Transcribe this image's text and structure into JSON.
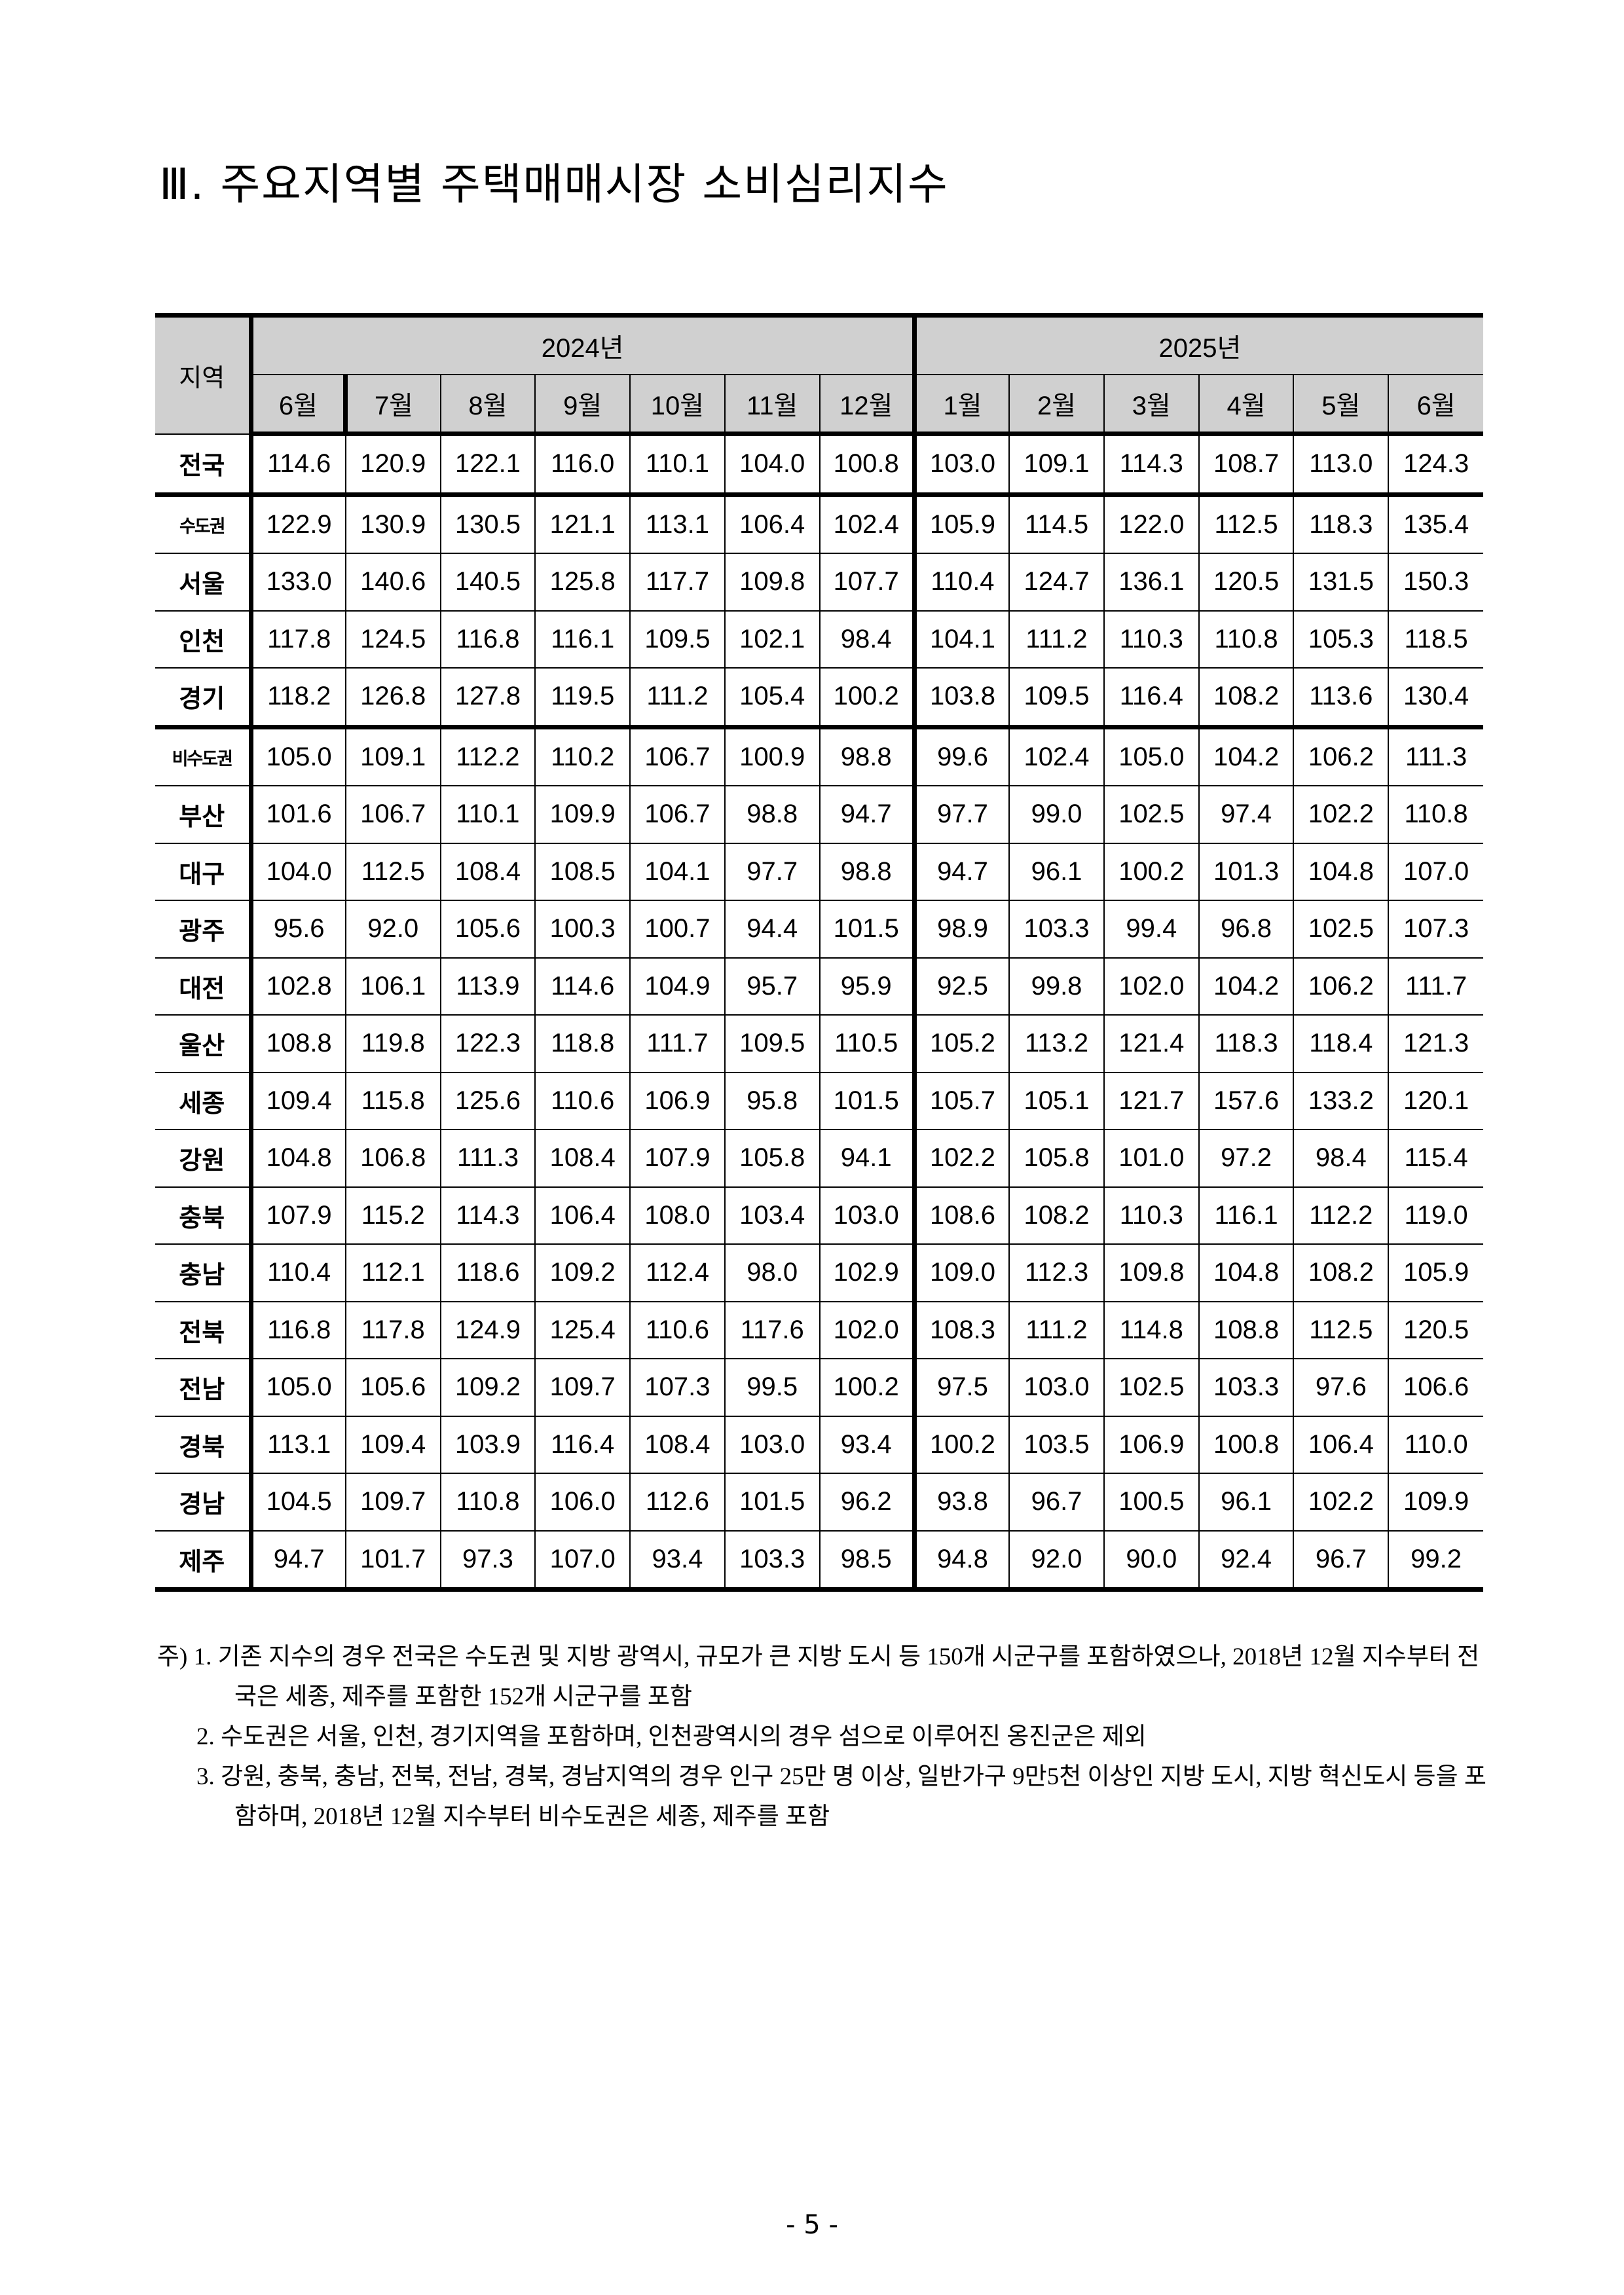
{
  "title": "Ⅲ. 주요지역별 주택매매시장 소비심리지수",
  "table": {
    "region_header": "지역",
    "years": [
      {
        "label": "2024년",
        "span": 7
      },
      {
        "label": "2025년",
        "span": 6
      }
    ],
    "months": [
      "6월",
      "7월",
      "8월",
      "9월",
      "10월",
      "11월",
      "12월",
      "1월",
      "2월",
      "3월",
      "4월",
      "5월",
      "6월"
    ],
    "rows": [
      {
        "region": "전국",
        "values": [
          "114.6",
          "120.9",
          "122.1",
          "116.0",
          "110.1",
          "104.0",
          "100.8",
          "103.0",
          "109.1",
          "114.3",
          "108.7",
          "113.0",
          "124.3"
        ]
      },
      {
        "region": "수도권",
        "values": [
          "122.9",
          "130.9",
          "130.5",
          "121.1",
          "113.1",
          "106.4",
          "102.4",
          "105.9",
          "114.5",
          "122.0",
          "112.5",
          "118.3",
          "135.4"
        ]
      },
      {
        "region": "서울",
        "values": [
          "133.0",
          "140.6",
          "140.5",
          "125.8",
          "117.7",
          "109.8",
          "107.7",
          "110.4",
          "124.7",
          "136.1",
          "120.5",
          "131.5",
          "150.3"
        ]
      },
      {
        "region": "인천",
        "values": [
          "117.8",
          "124.5",
          "116.8",
          "116.1",
          "109.5",
          "102.1",
          "98.4",
          "104.1",
          "111.2",
          "110.3",
          "110.8",
          "105.3",
          "118.5"
        ]
      },
      {
        "region": "경기",
        "values": [
          "118.2",
          "126.8",
          "127.8",
          "119.5",
          "111.2",
          "105.4",
          "100.2",
          "103.8",
          "109.5",
          "116.4",
          "108.2",
          "113.6",
          "130.4"
        ]
      },
      {
        "region": "비수도권",
        "values": [
          "105.0",
          "109.1",
          "112.2",
          "110.2",
          "106.7",
          "100.9",
          "98.8",
          "99.6",
          "102.4",
          "105.0",
          "104.2",
          "106.2",
          "111.3"
        ]
      },
      {
        "region": "부산",
        "values": [
          "101.6",
          "106.7",
          "110.1",
          "109.9",
          "106.7",
          "98.8",
          "94.7",
          "97.7",
          "99.0",
          "102.5",
          "97.4",
          "102.2",
          "110.8"
        ]
      },
      {
        "region": "대구",
        "values": [
          "104.0",
          "112.5",
          "108.4",
          "108.5",
          "104.1",
          "97.7",
          "98.8",
          "94.7",
          "96.1",
          "100.2",
          "101.3",
          "104.8",
          "107.0"
        ]
      },
      {
        "region": "광주",
        "values": [
          "95.6",
          "92.0",
          "105.6",
          "100.3",
          "100.7",
          "94.4",
          "101.5",
          "98.9",
          "103.3",
          "99.4",
          "96.8",
          "102.5",
          "107.3"
        ]
      },
      {
        "region": "대전",
        "values": [
          "102.8",
          "106.1",
          "113.9",
          "114.6",
          "104.9",
          "95.7",
          "95.9",
          "92.5",
          "99.8",
          "102.0",
          "104.2",
          "106.2",
          "111.7"
        ]
      },
      {
        "region": "울산",
        "values": [
          "108.8",
          "119.8",
          "122.3",
          "118.8",
          "111.7",
          "109.5",
          "110.5",
          "105.2",
          "113.2",
          "121.4",
          "118.3",
          "118.4",
          "121.3"
        ]
      },
      {
        "region": "세종",
        "values": [
          "109.4",
          "115.8",
          "125.6",
          "110.6",
          "106.9",
          "95.8",
          "101.5",
          "105.7",
          "105.1",
          "121.7",
          "157.6",
          "133.2",
          "120.1"
        ]
      },
      {
        "region": "강원",
        "values": [
          "104.8",
          "106.8",
          "111.3",
          "108.4",
          "107.9",
          "105.8",
          "94.1",
          "102.2",
          "105.8",
          "101.0",
          "97.2",
          "98.4",
          "115.4"
        ]
      },
      {
        "region": "충북",
        "values": [
          "107.9",
          "115.2",
          "114.3",
          "106.4",
          "108.0",
          "103.4",
          "103.0",
          "108.6",
          "108.2",
          "110.3",
          "116.1",
          "112.2",
          "119.0"
        ]
      },
      {
        "region": "충남",
        "values": [
          "110.4",
          "112.1",
          "118.6",
          "109.2",
          "112.4",
          "98.0",
          "102.9",
          "109.0",
          "112.3",
          "109.8",
          "104.8",
          "108.2",
          "105.9"
        ]
      },
      {
        "region": "전북",
        "values": [
          "116.8",
          "117.8",
          "124.9",
          "125.4",
          "110.6",
          "117.6",
          "102.0",
          "108.3",
          "111.2",
          "114.8",
          "108.8",
          "112.5",
          "120.5"
        ]
      },
      {
        "region": "전남",
        "values": [
          "105.0",
          "105.6",
          "109.2",
          "109.7",
          "107.3",
          "99.5",
          "100.2",
          "97.5",
          "103.0",
          "102.5",
          "103.3",
          "97.6",
          "106.6"
        ]
      },
      {
        "region": "경북",
        "values": [
          "113.1",
          "109.4",
          "103.9",
          "116.4",
          "108.4",
          "103.0",
          "93.4",
          "100.2",
          "103.5",
          "106.9",
          "100.8",
          "106.4",
          "110.0"
        ]
      },
      {
        "region": "경남",
        "values": [
          "104.5",
          "109.7",
          "110.8",
          "106.0",
          "112.6",
          "101.5",
          "96.2",
          "93.8",
          "96.7",
          "100.5",
          "96.1",
          "102.2",
          "109.9"
        ]
      },
      {
        "region": "제주",
        "values": [
          "94.7",
          "101.7",
          "97.3",
          "107.0",
          "93.4",
          "103.3",
          "98.5",
          "94.8",
          "92.0",
          "90.0",
          "92.4",
          "96.7",
          "99.2"
        ]
      }
    ],
    "header_bg": "#d0d0d0"
  },
  "notes": [
    "주) 1. 기존 지수의 경우 전국은 수도권 및 지방 광역시, 규모가 큰 지방 도시 등 150개 시군구를 포함하였으나, 2018년 12월 지수부터 전국은 세종, 제주를 포함한 152개 시군구를 포함",
    "2. 수도권은 서울, 인천, 경기지역을 포함하며, 인천광역시의 경우 섬으로 이루어진 옹진군은 제외",
    "3. 강원, 충북, 충남, 전북, 전남, 경북, 경남지역의 경우 인구 25만 명 이상, 일반가구 9만5천 이상인 지방 도시, 지방 혁신도시 등을 포함하며, 2018년 12월 지수부터 비수도권은 세종, 제주를 포함"
  ],
  "page_number": "- 5 -"
}
